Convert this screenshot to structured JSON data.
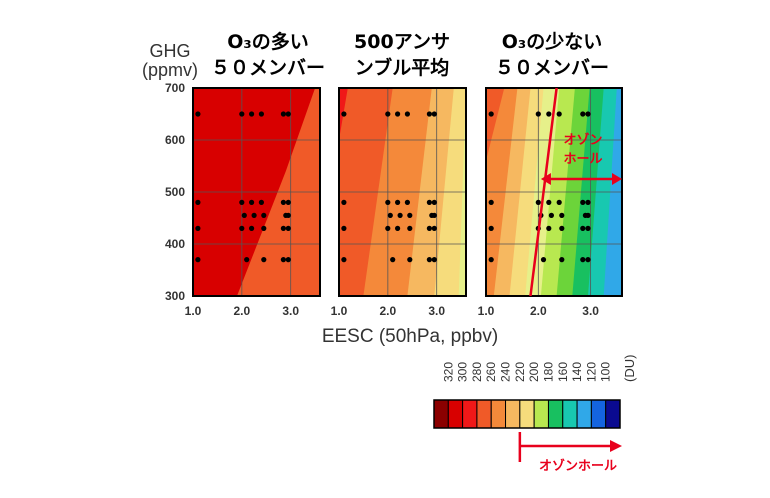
{
  "colors": {
    "accent_red": "#e8001c",
    "scale": [
      "#8b0000",
      "#d80000",
      "#f01818",
      "#f05a28",
      "#f4893a",
      "#f6b860",
      "#f6dc7c",
      "#e6f08a",
      "#b8e850",
      "#6cd43a",
      "#18c060",
      "#18c8b0",
      "#30a8e8",
      "#1464e0",
      "#0c1ccc",
      "#0a0a90"
    ]
  },
  "figure": {
    "y_label_line1": "GHG",
    "y_label_line2": "(ppmv)",
    "x_label": "EESC (50hPa, ppbv)",
    "hole_label_line1": "オゾン",
    "hole_label_line2": "ホール",
    "colorbar_hole_label": "オゾンホール",
    "colorbar_unit": "(DU)",
    "colorbar_ticks": [
      "320",
      "300",
      "280",
      "260",
      "240",
      "220",
      "200",
      "180",
      "160",
      "140",
      "120",
      "100"
    ]
  },
  "chart_data": {
    "type": "heatmap",
    "xlabel": "EESC (50hPa, ppbv)",
    "ylabel": "GHG (ppmv)",
    "xlim": [
      1.0,
      3.6
    ],
    "ylim": [
      300,
      700
    ],
    "x_ticks": [
      "1.0",
      "2.0",
      "3.0"
    ],
    "y_ticks": [
      "300",
      "400",
      "500",
      "600",
      "700"
    ],
    "colorbar": {
      "unit": "(DU)",
      "levels": [
        320,
        300,
        280,
        260,
        240,
        220,
        200,
        180,
        160,
        140,
        120,
        100
      ]
    },
    "ozone_hole_threshold_du": 220,
    "panels": [
      {
        "title_line1": "O₃の多い",
        "title_line2": "５０メンバー",
        "contours": [
          {
            "color_index": 1,
            "points": [
              [
                1.0,
                300
              ],
              [
                3.6,
                300
              ],
              [
                3.6,
                700
              ],
              [
                1.0,
                700
              ]
            ]
          },
          {
            "color_index": 3,
            "points": [
              [
                1.9,
                300
              ],
              [
                3.6,
                300
              ],
              [
                3.6,
                700
              ],
              [
                3.5,
                700
              ],
              [
                2.9,
                540
              ]
            ]
          }
        ],
        "dots": [
          [
            1.1,
            650
          ],
          [
            2.0,
            650
          ],
          [
            2.2,
            650
          ],
          [
            2.4,
            650
          ],
          [
            2.85,
            650
          ],
          [
            2.95,
            650
          ],
          [
            1.1,
            480
          ],
          [
            2.0,
            480
          ],
          [
            2.2,
            480
          ],
          [
            2.4,
            480
          ],
          [
            2.85,
            480
          ],
          [
            2.95,
            480
          ],
          [
            2.05,
            455
          ],
          [
            2.25,
            455
          ],
          [
            2.45,
            455
          ],
          [
            2.9,
            455
          ],
          [
            2.95,
            455
          ],
          [
            1.1,
            430
          ],
          [
            2.0,
            430
          ],
          [
            2.2,
            430
          ],
          [
            2.45,
            430
          ],
          [
            2.85,
            430
          ],
          [
            2.95,
            430
          ],
          [
            1.1,
            370
          ],
          [
            2.1,
            370
          ],
          [
            2.45,
            370
          ],
          [
            2.85,
            370
          ],
          [
            2.95,
            370
          ]
        ]
      },
      {
        "title_line1": "500アンサ",
        "title_line2": "ンブル平均",
        "contours": [
          {
            "color_index": 2,
            "points": [
              [
                1.0,
                300
              ],
              [
                3.6,
                300
              ],
              [
                3.6,
                700
              ],
              [
                1.0,
                700
              ]
            ]
          },
          {
            "color_index": 3,
            "points": [
              [
                1.0,
                300
              ],
              [
                3.6,
                300
              ],
              [
                3.6,
                700
              ],
              [
                1.18,
                700
              ],
              [
                1.0,
                600
              ]
            ]
          },
          {
            "color_index": 4,
            "points": [
              [
                1.5,
                300
              ],
              [
                3.6,
                300
              ],
              [
                3.6,
                700
              ],
              [
                2.1,
                700
              ]
            ]
          },
          {
            "color_index": 5,
            "points": [
              [
                2.4,
                300
              ],
              [
                3.6,
                300
              ],
              [
                3.6,
                700
              ],
              [
                2.9,
                700
              ]
            ]
          },
          {
            "color_index": 6,
            "points": [
              [
                2.95,
                300
              ],
              [
                3.6,
                300
              ],
              [
                3.6,
                700
              ],
              [
                3.35,
                700
              ]
            ]
          },
          {
            "color_index": 7,
            "points": [
              [
                3.45,
                300
              ],
              [
                3.6,
                300
              ],
              [
                3.6,
                700
              ],
              [
                3.6,
                700
              ]
            ]
          }
        ],
        "dots": [
          [
            1.1,
            650
          ],
          [
            2.0,
            650
          ],
          [
            2.2,
            650
          ],
          [
            2.4,
            650
          ],
          [
            2.85,
            650
          ],
          [
            2.95,
            650
          ],
          [
            1.1,
            480
          ],
          [
            2.0,
            480
          ],
          [
            2.2,
            480
          ],
          [
            2.4,
            480
          ],
          [
            2.85,
            480
          ],
          [
            2.95,
            480
          ],
          [
            2.05,
            455
          ],
          [
            2.25,
            455
          ],
          [
            2.45,
            455
          ],
          [
            2.9,
            455
          ],
          [
            2.95,
            455
          ],
          [
            1.1,
            430
          ],
          [
            2.0,
            430
          ],
          [
            2.2,
            430
          ],
          [
            2.45,
            430
          ],
          [
            2.85,
            430
          ],
          [
            2.95,
            430
          ],
          [
            1.1,
            370
          ],
          [
            2.1,
            370
          ],
          [
            2.45,
            370
          ],
          [
            2.85,
            370
          ],
          [
            2.95,
            370
          ]
        ]
      },
      {
        "title_line1": "O₃の少ない",
        "title_line2": "５０メンバー",
        "contours": [
          {
            "color_index": 3,
            "points": [
              [
                1.0,
                300
              ],
              [
                3.6,
                300
              ],
              [
                3.6,
                700
              ],
              [
                1.0,
                700
              ]
            ]
          },
          {
            "color_index": 4,
            "points": [
              [
                1.0,
                300
              ],
              [
                3.6,
                300
              ],
              [
                3.6,
                700
              ],
              [
                1.35,
                700
              ],
              [
                1.0,
                560
              ]
            ]
          },
          {
            "color_index": 5,
            "points": [
              [
                1.15,
                300
              ],
              [
                3.6,
                300
              ],
              [
                3.6,
                700
              ],
              [
                1.6,
                700
              ]
            ]
          },
          {
            "color_index": 6,
            "points": [
              [
                1.45,
                300
              ],
              [
                3.6,
                300
              ],
              [
                3.6,
                700
              ],
              [
                1.85,
                700
              ]
            ]
          },
          {
            "color_index": 7,
            "points": [
              [
                1.75,
                300
              ],
              [
                3.6,
                300
              ],
              [
                3.6,
                700
              ],
              [
                2.1,
                700
              ]
            ]
          },
          {
            "color_index": 8,
            "points": [
              [
                2.05,
                300
              ],
              [
                3.6,
                300
              ],
              [
                3.6,
                700
              ],
              [
                2.4,
                700
              ]
            ]
          },
          {
            "color_index": 9,
            "points": [
              [
                2.35,
                300
              ],
              [
                3.6,
                300
              ],
              [
                3.6,
                700
              ],
              [
                2.7,
                700
              ]
            ]
          },
          {
            "color_index": 10,
            "points": [
              [
                2.65,
                300
              ],
              [
                3.6,
                300
              ],
              [
                3.6,
                700
              ],
              [
                2.98,
                700
              ]
            ]
          },
          {
            "color_index": 11,
            "points": [
              [
                2.95,
                300
              ],
              [
                3.6,
                300
              ],
              [
                3.6,
                700
              ],
              [
                3.25,
                700
              ]
            ]
          },
          {
            "color_index": 12,
            "points": [
              [
                3.25,
                300
              ],
              [
                3.6,
                300
              ],
              [
                3.6,
                700
              ],
              [
                3.5,
                700
              ]
            ]
          }
        ],
        "dots": [
          [
            1.1,
            650
          ],
          [
            2.0,
            650
          ],
          [
            2.2,
            650
          ],
          [
            2.4,
            650
          ],
          [
            2.85,
            650
          ],
          [
            2.95,
            650
          ],
          [
            1.1,
            480
          ],
          [
            2.0,
            480
          ],
          [
            2.2,
            480
          ],
          [
            2.4,
            480
          ],
          [
            2.85,
            480
          ],
          [
            2.95,
            480
          ],
          [
            2.05,
            455
          ],
          [
            2.25,
            455
          ],
          [
            2.45,
            455
          ],
          [
            2.9,
            455
          ],
          [
            2.95,
            455
          ],
          [
            1.1,
            430
          ],
          [
            2.0,
            430
          ],
          [
            2.2,
            430
          ],
          [
            2.45,
            430
          ],
          [
            2.85,
            430
          ],
          [
            2.95,
            430
          ],
          [
            1.1,
            370
          ],
          [
            2.1,
            370
          ],
          [
            2.45,
            370
          ],
          [
            2.85,
            370
          ],
          [
            2.95,
            370
          ]
        ],
        "threshold_line": [
          [
            1.85,
            300
          ],
          [
            2.35,
            700
          ]
        ],
        "hole_arrow": {
          "from": [
            2.05,
            525
          ],
          "to": [
            3.6,
            525
          ]
        }
      }
    ]
  }
}
